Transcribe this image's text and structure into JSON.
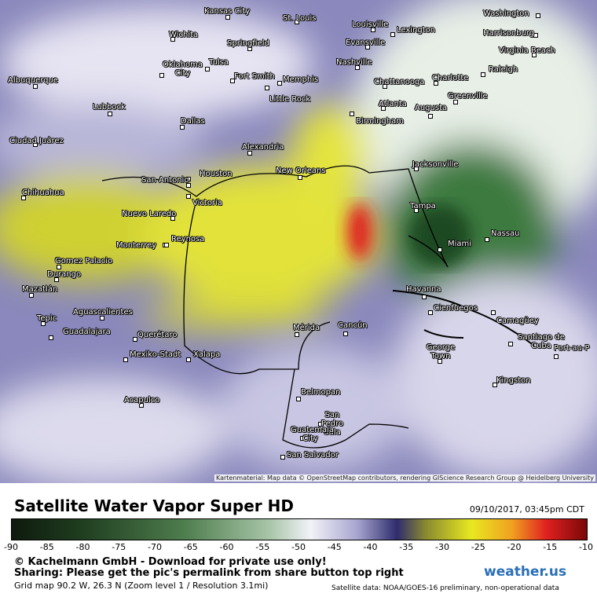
{
  "map": {
    "cities": [
      "Kansas City",
      "St. Louis",
      "Louisville",
      "Lexington",
      "Washington",
      "Wichita",
      "Springfield",
      "Evansville",
      "Harrisonburg",
      "Virginia Beach",
      "Oklahoma City",
      "Tulsa",
      "Nashville",
      "Albuquerque",
      "Fort Smith",
      "Memphis",
      "Chattanooga",
      "Charlotte",
      "Raleigh",
      "Greenville",
      "Lubbock",
      "Little Rock",
      "Atlanta",
      "Augusta",
      "Birmingham",
      "Dallas",
      "Ciudad Juárez",
      "Alexandria",
      "Houston",
      "New Orleans",
      "Jacksonville",
      "San Antonio",
      "Chihuahua",
      "Victoria",
      "Tampa",
      "Nuevo Laredo",
      "Reynosa",
      "Miami",
      "Nassau",
      "Monterrey",
      "Gomez Palacio",
      "Durango",
      "Havanna",
      "Mazatlán",
      "Cienfuegos",
      "Aguascalientes",
      "Camagüey",
      "Tepic",
      "Mérida",
      "Cancún",
      "Guadalajara",
      "Querétaro",
      "Santiago de Cuba",
      "George Town",
      "Mexiko-Stadt",
      "Xalapa",
      "Port-au-P",
      "Kingston",
      "Belmopan",
      "Acapulco",
      "San Pedro Sula",
      "Guatemala City",
      "San Salvador"
    ],
    "attribution": "Kartenmaterial: Map data © OpenStreetMap contributors, rendering GIScience Research Group @ Heidelberg University"
  },
  "footer": {
    "title": "Satellite Water Vapor Super HD",
    "timestamp": "09/10/2017, 03:45pm CDT",
    "scale": [
      -90,
      -85,
      -80,
      -75,
      -70,
      -65,
      -60,
      -55,
      -50,
      -45,
      -40,
      -35,
      -30,
      -25,
      -20,
      -15,
      -10
    ],
    "copyright": "© Kachelmann GmbH - Download for private use only!",
    "sharing": "Sharing: Please get the pic's permalink from share button top right",
    "grid": "Grid map 90.2 W, 26.3 N (Zoom level 1 / Resolution 3.1mi)",
    "brand": "weather.us",
    "source": "Satellite data: NOAA/GOES-16 preliminary, non-operational data"
  }
}
